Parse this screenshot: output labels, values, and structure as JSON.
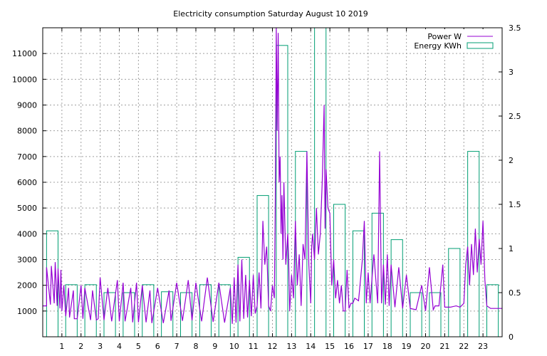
{
  "chart_data": {
    "type": "line",
    "title": "Electricity consumption Saturday August 10 2019",
    "xlabel": "",
    "ylabel": "",
    "y2label": "",
    "xlim": [
      0,
      24
    ],
    "ylim": [
      0,
      12000
    ],
    "y2lim": [
      0,
      3.5
    ],
    "grid": true,
    "legend_position": "top-right",
    "x_ticks": [
      "1",
      "2",
      "3",
      "4",
      "5",
      "6",
      "7",
      "8",
      "9",
      "10",
      "11",
      "12",
      "13",
      "14",
      "15",
      "16",
      "17",
      "18",
      "19",
      "20",
      "21",
      "22",
      "23"
    ],
    "y_ticks": [
      "1000",
      "2000",
      "3000",
      "4000",
      "5000",
      "6000",
      "7000",
      "8000",
      "9000",
      "10000",
      "11000"
    ],
    "y2_ticks": [
      "0",
      "0.5",
      "1",
      "1.5",
      "2",
      "2.5",
      "3",
      "3.5"
    ],
    "colors": {
      "power": "#9400d3",
      "energy": "#009e73"
    },
    "series": [
      {
        "name": "Power W",
        "axis": "y1",
        "style": "line",
        "x": [
          0.0,
          0.2,
          0.2,
          0.4,
          0.45,
          0.6,
          0.65,
          0.75,
          0.8,
          0.9,
          0.95,
          1.0,
          1.1,
          1.2,
          1.35,
          1.4,
          1.6,
          1.65,
          1.8,
          2.0,
          2.1,
          2.2,
          2.5,
          2.6,
          2.8,
          2.9,
          3.0,
          3.2,
          3.4,
          3.6,
          3.9,
          4.0,
          4.2,
          4.3,
          4.6,
          4.7,
          4.9,
          5.0,
          5.2,
          5.4,
          5.6,
          5.7,
          6.0,
          6.3,
          6.6,
          6.7,
          7.0,
          7.3,
          7.6,
          7.8,
          8.0,
          8.3,
          8.6,
          8.9,
          9.2,
          9.5,
          9.8,
          9.9,
          10.0,
          10.1,
          10.2,
          10.3,
          10.4,
          10.5,
          10.6,
          10.7,
          10.8,
          10.9,
          11.0,
          11.1,
          11.2,
          11.3,
          11.4,
          11.5,
          11.6,
          11.7,
          11.8,
          11.9,
          12.0,
          12.1,
          12.15,
          12.2,
          12.25,
          12.3,
          12.35,
          12.4,
          12.45,
          12.5,
          12.55,
          12.6,
          12.7,
          12.8,
          12.85,
          12.9,
          13.0,
          13.1,
          13.2,
          13.3,
          13.4,
          13.5,
          13.6,
          13.7,
          13.8,
          13.9,
          14.0,
          14.05,
          14.1,
          14.2,
          14.3,
          14.4,
          14.5,
          14.6,
          14.7,
          14.75,
          14.8,
          14.9,
          15.0,
          15.1,
          15.2,
          15.3,
          15.4,
          15.5,
          15.6,
          15.7,
          15.8,
          15.9,
          16.0,
          16.1,
          16.2,
          16.3,
          16.5,
          16.7,
          16.8,
          16.9,
          17.0,
          17.1,
          17.3,
          17.5,
          17.6,
          17.7,
          17.8,
          17.9,
          18.0,
          18.1,
          18.2,
          18.4,
          18.6,
          18.8,
          19.0,
          19.2,
          19.5,
          19.8,
          20.0,
          20.2,
          20.4,
          20.5,
          20.7,
          20.9,
          21.0,
          21.3,
          21.6,
          21.8,
          22.0,
          22.1,
          22.2,
          22.3,
          22.4,
          22.5,
          22.6,
          22.7,
          22.8,
          22.9,
          23.0,
          23.1,
          23.2,
          23.4,
          23.6,
          23.8,
          24.0
        ],
        "y": [
          1200,
          1200,
          2700,
          1250,
          2750,
          1300,
          2900,
          1200,
          2650,
          1100,
          2600,
          1000,
          2000,
          800,
          1900,
          750,
          1800,
          700,
          700,
          2000,
          700,
          1900,
          650,
          1800,
          650,
          700,
          2300,
          650,
          1900,
          600,
          2200,
          600,
          2100,
          600,
          1900,
          560,
          2100,
          560,
          2000,
          560,
          1800,
          530,
          1900,
          530,
          1800,
          620,
          2100,
          620,
          2200,
          640,
          2100,
          600,
          2300,
          580,
          2100,
          550,
          1900,
          500,
          2300,
          550,
          2800,
          600,
          3000,
          700,
          2400,
          750,
          2200,
          800,
          2400,
          900,
          1200,
          2500,
          1100,
          4500,
          2800,
          3500,
          1200,
          1000,
          2000,
          1500,
          5200,
          12000,
          8000,
          11800,
          6000,
          7000,
          4000,
          5500,
          3000,
          6000,
          2800,
          4000,
          3000,
          1000,
          2400,
          1500,
          4500,
          2000,
          3200,
          1200,
          3600,
          3000,
          7200,
          2800,
          1300,
          3500,
          4000,
          3000,
          5000,
          3200,
          4000,
          6000,
          9000,
          4200,
          6500,
          5000,
          4800,
          2000,
          3000,
          1500,
          2200,
          1300,
          2000,
          1000,
          1000,
          2600,
          1100,
          1300,
          1300,
          1500,
          1400,
          3000,
          4500,
          1300,
          2500,
          1300,
          3200,
          1300,
          7200,
          1300,
          2800,
          1250,
          3200,
          1200,
          2800,
          1150,
          2700,
          1100,
          2400,
          1100,
          1050,
          2000,
          1000,
          2700,
          1050,
          1200,
          1200,
          2800,
          1150,
          1150,
          1200,
          1150,
          1300,
          2800,
          3500,
          2000,
          3600,
          2400,
          4200,
          2500,
          3800,
          2800,
          4500,
          2200,
          1200,
          1100,
          1100,
          1100,
          1100
        ]
      },
      {
        "name": "Energy KWh",
        "axis": "y2",
        "style": "steps-boxes",
        "x": [
          0.5,
          1.5,
          2.5,
          3.5,
          4.5,
          5.5,
          6.5,
          7.5,
          8.5,
          9.5,
          10.5,
          11.5,
          12.5,
          13.5,
          14.5,
          15.5,
          16.5,
          17.5,
          18.5,
          19.5,
          20.5,
          21.5,
          22.5,
          23.5
        ],
        "y": [
          1.2,
          0.59,
          0.59,
          0.5,
          0.5,
          0.59,
          0.51,
          0.5,
          0.59,
          0.59,
          0.9,
          1.6,
          3.3,
          2.1,
          3.5,
          1.5,
          1.2,
          1.4,
          1.1,
          0.5,
          0.5,
          1.0,
          2.1,
          0.59
        ]
      }
    ]
  }
}
